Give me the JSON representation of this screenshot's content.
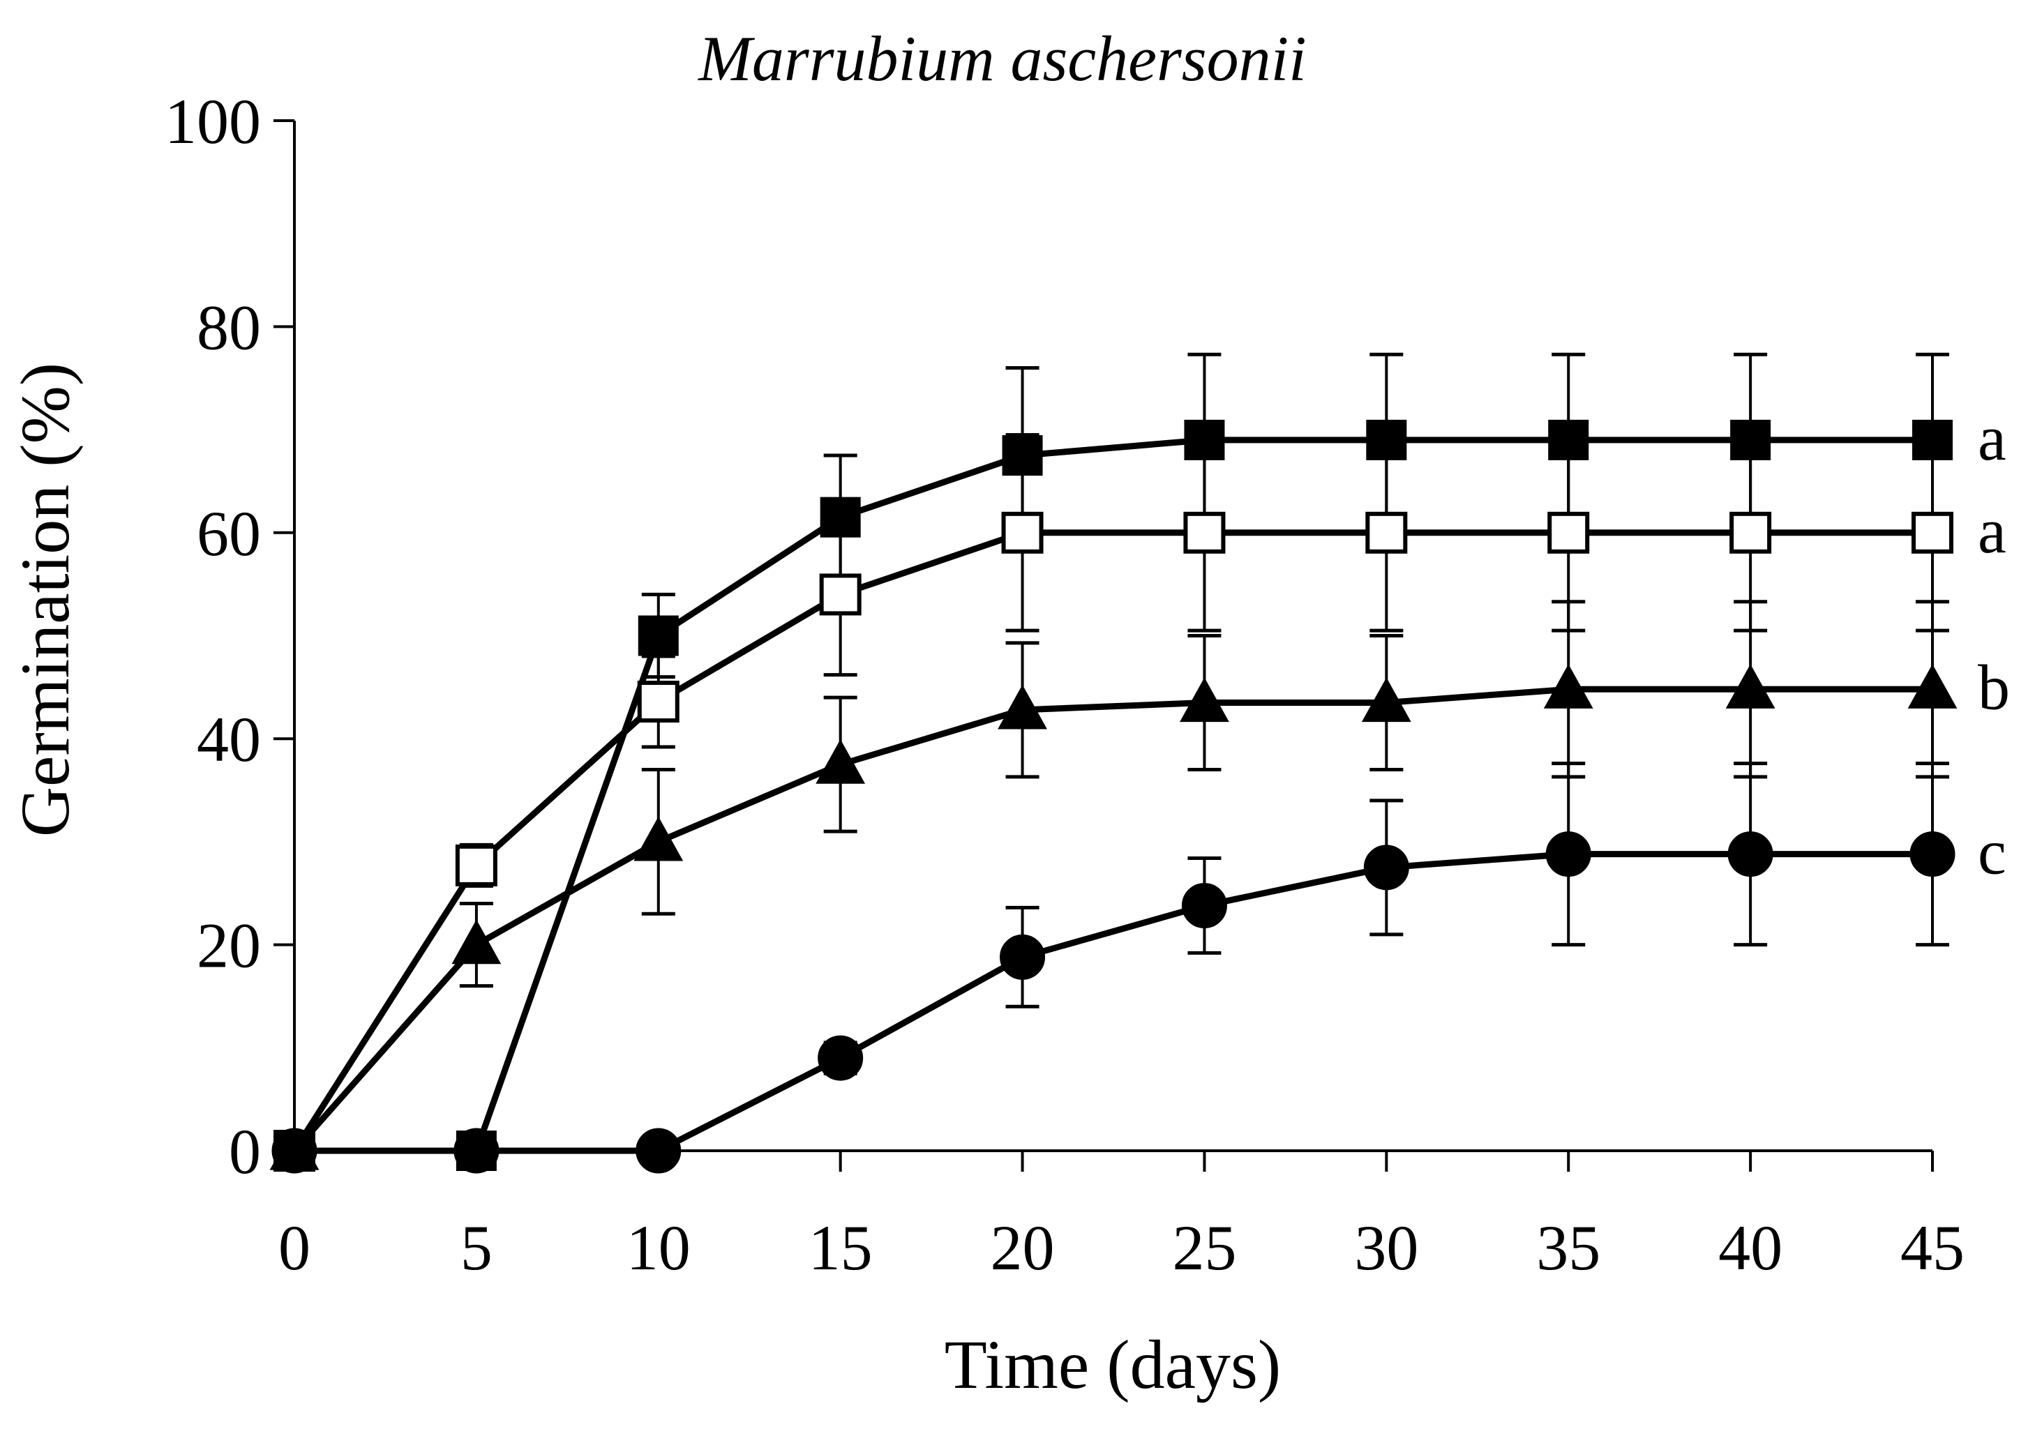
{
  "chart_data": {
    "type": "line",
    "title": "Marrubium aschersonii",
    "xlabel": "Time (days)",
    "ylabel": "Germination (%)",
    "xlim": [
      0,
      45
    ],
    "ylim": [
      0,
      100
    ],
    "x": [
      0,
      5,
      10,
      15,
      20,
      25,
      30,
      35,
      40,
      45
    ],
    "xticks": [
      "0",
      "5",
      "10",
      "15",
      "20",
      "25",
      "30",
      "35",
      "40",
      "45"
    ],
    "yticks": [
      "0",
      "20",
      "40",
      "60",
      "80",
      "100"
    ],
    "grid": false,
    "legend": "none",
    "series": [
      {
        "name": "filled-square",
        "marker": "square-filled",
        "significance": "a",
        "values": [
          0,
          0,
          50,
          61.5,
          67.5,
          69,
          69,
          69,
          69,
          69
        ],
        "errors": [
          0,
          0,
          4,
          6,
          8.5,
          8.3,
          8.3,
          8.3,
          8.3,
          8.3
        ]
      },
      {
        "name": "open-square",
        "marker": "square-open",
        "significance": "a",
        "values": [
          0,
          27.7,
          43.6,
          54,
          60,
          60,
          60,
          60,
          60,
          60
        ],
        "errors": [
          0,
          2,
          4.4,
          7.8,
          9.5,
          9.5,
          9.5,
          9.5,
          9.5,
          9.5
        ]
      },
      {
        "name": "filled-triangle",
        "marker": "triangle-filled",
        "significance": "b",
        "values": [
          0,
          20,
          30,
          37.5,
          42.8,
          43.5,
          43.5,
          44.8,
          44.8,
          44.8
        ],
        "errors": [
          0,
          4,
          7,
          6.5,
          6.5,
          6.5,
          6.5,
          8.5,
          8.5,
          8.5
        ]
      },
      {
        "name": "filled-circle",
        "marker": "circle-filled",
        "significance": "c",
        "values": [
          0,
          0,
          0,
          9,
          18.8,
          23.8,
          27.5,
          28.8,
          28.8,
          28.8
        ],
        "errors": [
          0,
          0,
          0,
          1.5,
          4.8,
          4.6,
          6.5,
          8.8,
          8.8,
          8.8
        ]
      }
    ]
  }
}
